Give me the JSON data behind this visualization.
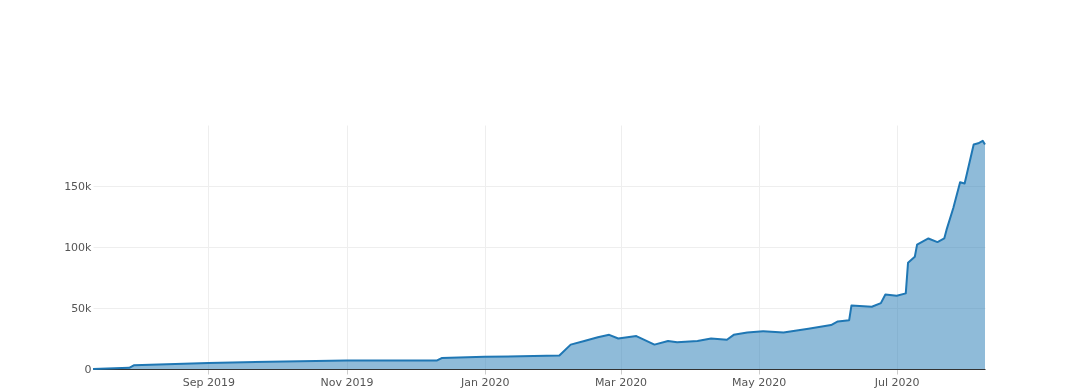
{
  "chart_data": {
    "type": "area",
    "x": [
      "2019-07-12",
      "2019-07-28",
      "2019-07-30",
      "2019-09-01",
      "2019-11-01",
      "2019-12-11",
      "2019-12-13",
      "2020-01-01",
      "2020-02-03",
      "2020-02-08",
      "2020-02-14",
      "2020-02-20",
      "2020-02-25",
      "2020-02-29",
      "2020-03-08",
      "2020-03-16",
      "2020-03-22",
      "2020-03-26",
      "2020-04-04",
      "2020-04-10",
      "2020-04-17",
      "2020-04-20",
      "2020-04-26",
      "2020-05-03",
      "2020-05-12",
      "2020-05-23",
      "2020-06-02",
      "2020-06-05",
      "2020-06-10",
      "2020-06-11",
      "2020-06-20",
      "2020-06-24",
      "2020-06-26",
      "2020-07-01",
      "2020-07-05",
      "2020-07-06",
      "2020-07-09",
      "2020-07-10",
      "2020-07-15",
      "2020-07-19",
      "2020-07-22",
      "2020-07-23",
      "2020-07-26",
      "2020-07-29",
      "2020-07-31",
      "2020-08-04",
      "2020-08-06",
      "2020-08-08",
      "2020-08-09"
    ],
    "series": [
      {
        "color": "#1f77b4",
        "values": [
          0,
          1000,
          3000,
          5000,
          7000,
          7000,
          9000,
          10000,
          11000,
          20000,
          23000,
          26000,
          28000,
          25000,
          27000,
          20000,
          23000,
          22000,
          23000,
          25000,
          24000,
          28000,
          30000,
          31000,
          30000,
          33000,
          36000,
          39000,
          40000,
          52000,
          51000,
          54000,
          61000,
          60000,
          62000,
          87000,
          92000,
          102000,
          107000,
          104000,
          107000,
          114000,
          132000,
          153000,
          152000,
          184000,
          185000,
          187000,
          184000
        ]
      }
    ],
    "xlim": [
      "2019-07-12",
      "2020-08-09"
    ],
    "xticks": [
      {
        "value": "2019-09-01",
        "label": "Sep 2019"
      },
      {
        "value": "2019-11-01",
        "label": "Nov 2019"
      },
      {
        "value": "2020-01-01",
        "label": "Jan 2020"
      },
      {
        "value": "2020-03-01",
        "label": "Mar 2020"
      },
      {
        "value": "2020-05-01",
        "label": "May 2020"
      },
      {
        "value": "2020-07-01",
        "label": "Jul 2020"
      }
    ],
    "ylim": [
      0,
      200000
    ],
    "yticks": [
      {
        "value": 0,
        "label": "0"
      },
      {
        "value": 50000,
        "label": "50k"
      },
      {
        "value": 100000,
        "label": "100k"
      },
      {
        "value": 150000,
        "label": "150k"
      }
    ],
    "grid": true
  }
}
